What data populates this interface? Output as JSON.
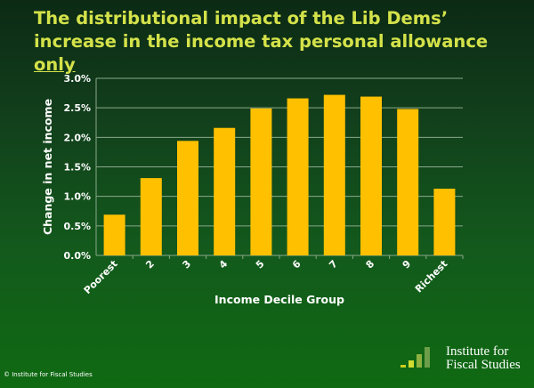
{
  "title_main": "The distributional impact of the Lib Dems’ increase in the income tax personal allowance ",
  "title_emph": "only",
  "footer": "© Institute for Fiscal Studies",
  "logo": {
    "line1": "Institute for",
    "line2": "Fiscal Studies"
  },
  "colors": {
    "bar": "#ffc000",
    "title": "#d4e24a"
  },
  "chart_data": {
    "type": "bar",
    "categories": [
      "Poorest",
      "2",
      "3",
      "4",
      "5",
      "6",
      "7",
      "8",
      "9",
      "Richest"
    ],
    "values": [
      0.69,
      1.31,
      1.94,
      2.16,
      2.49,
      2.66,
      2.72,
      2.69,
      2.48,
      1.13
    ],
    "xlabel": "Income Decile Group",
    "ylabel": "Change in net income",
    "ylim": [
      0,
      3.0
    ],
    "yticks": [
      "0.0%",
      "0.5%",
      "1.0%",
      "1.5%",
      "2.0%",
      "2.5%",
      "3.0%"
    ],
    "grid": true
  }
}
